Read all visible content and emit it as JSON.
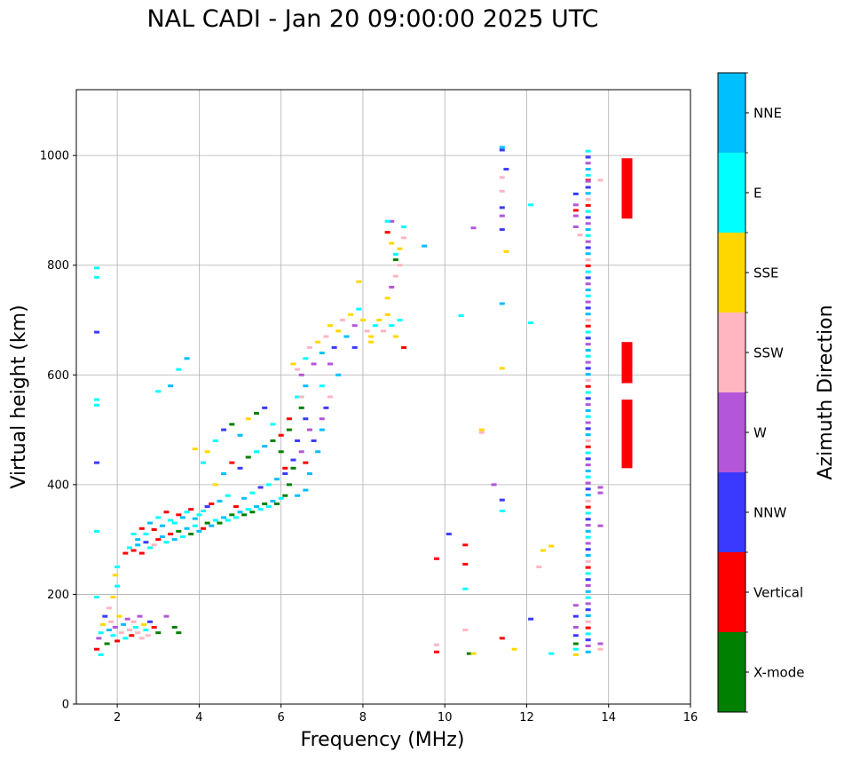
{
  "chart_data": {
    "type": "scatter",
    "title": "NAL CADI - Jan 20 09:00:00 2025 UTC",
    "xlabel": "Frequency (MHz)",
    "ylabel": "Virtual height (km)",
    "colorbar_label": "Azimuth Direction",
    "xlim": [
      1,
      16
    ],
    "ylim": [
      0,
      1120
    ],
    "xticks": [
      2,
      4,
      6,
      8,
      10,
      12,
      14,
      16
    ],
    "yticks": [
      0,
      200,
      400,
      600,
      800,
      1000
    ],
    "grid": true,
    "categories": [
      {
        "name": "X-mode",
        "color": "#008000"
      },
      {
        "name": "Vertical",
        "color": "#ff0000"
      },
      {
        "name": "NNW",
        "color": "#3a3aff"
      },
      {
        "name": "W",
        "color": "#b456d8"
      },
      {
        "name": "SSW",
        "color": "#ffb6c1"
      },
      {
        "name": "SSE",
        "color": "#ffd700"
      },
      {
        "name": "E",
        "color": "#00ffff"
      },
      {
        "name": "NNE",
        "color": "#00bfff"
      }
    ],
    "points": [
      [
        1.5,
        100,
        1
      ],
      [
        1.55,
        120,
        3
      ],
      [
        1.6,
        130,
        6
      ],
      [
        1.65,
        145,
        5
      ],
      [
        1.7,
        160,
        2
      ],
      [
        1.75,
        110,
        0
      ],
      [
        1.8,
        135,
        7
      ],
      [
        1.85,
        150,
        4
      ],
      [
        1.9,
        125,
        6
      ],
      [
        1.95,
        140,
        3
      ],
      [
        2.0,
        115,
        1
      ],
      [
        2.05,
        160,
        5
      ],
      [
        2.1,
        130,
        4
      ],
      [
        2.15,
        145,
        7
      ],
      [
        2.2,
        120,
        6
      ],
      [
        2.25,
        155,
        3
      ],
      [
        2.3,
        135,
        4
      ],
      [
        2.35,
        125,
        1
      ],
      [
        2.4,
        150,
        4
      ],
      [
        2.45,
        140,
        6
      ],
      [
        2.5,
        130,
        4
      ],
      [
        2.55,
        160,
        3
      ],
      [
        2.6,
        120,
        4
      ],
      [
        2.65,
        145,
        5
      ],
      [
        2.7,
        135,
        6
      ],
      [
        2.75,
        125,
        4
      ],
      [
        2.8,
        150,
        2
      ],
      [
        2.9,
        140,
        1
      ],
      [
        3.0,
        130,
        0
      ],
      [
        3.2,
        160,
        3
      ],
      [
        3.4,
        140,
        0
      ],
      [
        3.5,
        130,
        0
      ],
      [
        1.6,
        90,
        6
      ],
      [
        1.5,
        195,
        6
      ],
      [
        1.5,
        315,
        6
      ],
      [
        1.5,
        440,
        2
      ],
      [
        1.5,
        545,
        6
      ],
      [
        1.5,
        555,
        6
      ],
      [
        1.5,
        678,
        2
      ],
      [
        1.5,
        778,
        6
      ],
      [
        1.5,
        795,
        6
      ],
      [
        1.8,
        175,
        4
      ],
      [
        1.9,
        195,
        5
      ],
      [
        2.0,
        215,
        6
      ],
      [
        1.95,
        235,
        5
      ],
      [
        2.0,
        250,
        6
      ],
      [
        2.2,
        275,
        1
      ],
      [
        2.3,
        285,
        6
      ],
      [
        2.4,
        280,
        1
      ],
      [
        2.5,
        290,
        7
      ],
      [
        2.6,
        275,
        1
      ],
      [
        2.7,
        295,
        2
      ],
      [
        2.8,
        285,
        6
      ],
      [
        2.9,
        290,
        4
      ],
      [
        3.0,
        300,
        1
      ],
      [
        3.1,
        305,
        7
      ],
      [
        3.2,
        295,
        6
      ],
      [
        3.3,
        310,
        1
      ],
      [
        3.4,
        300,
        7
      ],
      [
        3.5,
        315,
        0
      ],
      [
        3.6,
        305,
        6
      ],
      [
        3.7,
        320,
        7
      ],
      [
        3.8,
        310,
        0
      ],
      [
        3.9,
        325,
        6
      ],
      [
        4.0,
        315,
        7
      ],
      [
        4.1,
        320,
        1
      ],
      [
        4.2,
        330,
        0
      ],
      [
        4.3,
        325,
        7
      ],
      [
        4.4,
        335,
        6
      ],
      [
        4.5,
        330,
        0
      ],
      [
        4.6,
        340,
        7
      ],
      [
        4.7,
        335,
        6
      ],
      [
        4.8,
        345,
        0
      ],
      [
        4.9,
        340,
        6
      ],
      [
        5.0,
        350,
        7
      ],
      [
        5.1,
        345,
        0
      ],
      [
        5.2,
        355,
        6
      ],
      [
        5.3,
        350,
        0
      ],
      [
        5.4,
        360,
        7
      ],
      [
        5.5,
        355,
        6
      ],
      [
        5.6,
        365,
        0
      ],
      [
        5.7,
        360,
        6
      ],
      [
        5.8,
        370,
        7
      ],
      [
        5.9,
        365,
        0
      ],
      [
        6.0,
        375,
        6
      ],
      [
        6.1,
        380,
        0
      ],
      [
        2.4,
        310,
        6
      ],
      [
        2.6,
        320,
        1
      ],
      [
        2.8,
        330,
        7
      ],
      [
        3.0,
        340,
        6
      ],
      [
        3.2,
        350,
        1
      ],
      [
        3.4,
        330,
        6
      ],
      [
        3.6,
        340,
        7
      ],
      [
        3.8,
        355,
        1
      ],
      [
        4.0,
        345,
        6
      ],
      [
        4.2,
        360,
        2
      ],
      [
        2.5,
        300,
        7
      ],
      [
        2.7,
        310,
        6
      ],
      [
        2.9,
        318,
        1
      ],
      [
        3.1,
        325,
        7
      ],
      [
        3.3,
        335,
        6
      ],
      [
        3.5,
        345,
        1
      ],
      [
        3.7,
        350,
        6
      ],
      [
        3.9,
        338,
        7
      ],
      [
        4.1,
        352,
        6
      ],
      [
        4.3,
        365,
        1
      ],
      [
        4.5,
        370,
        7
      ],
      [
        4.7,
        380,
        6
      ],
      [
        4.9,
        360,
        1
      ],
      [
        5.1,
        375,
        7
      ],
      [
        5.3,
        385,
        6
      ],
      [
        5.5,
        395,
        2
      ],
      [
        5.7,
        400,
        6
      ],
      [
        5.9,
        410,
        7
      ],
      [
        6.1,
        420,
        2
      ],
      [
        6.3,
        430,
        0
      ],
      [
        4.4,
        400,
        5
      ],
      [
        4.6,
        420,
        7
      ],
      [
        4.8,
        440,
        1
      ],
      [
        5.0,
        430,
        2
      ],
      [
        5.2,
        450,
        0
      ],
      [
        5.4,
        460,
        6
      ],
      [
        5.6,
        470,
        7
      ],
      [
        5.8,
        480,
        0
      ],
      [
        6.0,
        490,
        1
      ],
      [
        6.2,
        500,
        0
      ],
      [
        4.2,
        460,
        5
      ],
      [
        4.4,
        480,
        6
      ],
      [
        4.6,
        500,
        2
      ],
      [
        4.8,
        510,
        0
      ],
      [
        5.0,
        490,
        7
      ],
      [
        5.2,
        520,
        5
      ],
      [
        5.4,
        530,
        0
      ],
      [
        5.6,
        540,
        2
      ],
      [
        5.8,
        510,
        6
      ],
      [
        6.0,
        460,
        0
      ],
      [
        3.3,
        580,
        7
      ],
      [
        3.5,
        610,
        6
      ],
      [
        3.7,
        630,
        7
      ],
      [
        3.0,
        570,
        6
      ],
      [
        3.9,
        465,
        5
      ],
      [
        4.1,
        440,
        6
      ],
      [
        6.2,
        520,
        1
      ],
      [
        6.4,
        560,
        6
      ],
      [
        6.5,
        540,
        0
      ],
      [
        6.6,
        580,
        7
      ],
      [
        6.4,
        610,
        4
      ],
      [
        6.5,
        600,
        3
      ],
      [
        6.6,
        630,
        6
      ],
      [
        6.7,
        650,
        4
      ],
      [
        6.8,
        620,
        3
      ],
      [
        6.9,
        660,
        5
      ],
      [
        7.0,
        640,
        7
      ],
      [
        7.1,
        670,
        4
      ],
      [
        7.2,
        690,
        5
      ],
      [
        7.3,
        650,
        2
      ],
      [
        7.4,
        680,
        5
      ],
      [
        7.5,
        700,
        4
      ],
      [
        7.6,
        670,
        7
      ],
      [
        7.7,
        710,
        5
      ],
      [
        7.8,
        690,
        3
      ],
      [
        7.9,
        720,
        6
      ],
      [
        8.0,
        700,
        5
      ],
      [
        8.1,
        680,
        4
      ],
      [
        8.2,
        670,
        5
      ],
      [
        8.3,
        690,
        6
      ],
      [
        8.4,
        700,
        5
      ],
      [
        8.5,
        680,
        4
      ],
      [
        8.6,
        710,
        5
      ],
      [
        8.7,
        690,
        6
      ],
      [
        8.8,
        670,
        5
      ],
      [
        8.9,
        700,
        6
      ],
      [
        9.0,
        650,
        1
      ],
      [
        8.6,
        740,
        5
      ],
      [
        8.7,
        760,
        3
      ],
      [
        8.8,
        780,
        4
      ],
      [
        8.6,
        860,
        1
      ],
      [
        8.7,
        840,
        5
      ],
      [
        8.8,
        820,
        6
      ],
      [
        8.9,
        800,
        4
      ],
      [
        9.0,
        870,
        6
      ],
      [
        8.8,
        810,
        0
      ],
      [
        8.9,
        830,
        5
      ],
      [
        9.0,
        850,
        4
      ],
      [
        8.7,
        880,
        3
      ],
      [
        8.6,
        880,
        6
      ],
      [
        6.3,
        620,
        5
      ],
      [
        6.5,
        560,
        4
      ],
      [
        6.6,
        520,
        2
      ],
      [
        6.7,
        500,
        3
      ],
      [
        6.8,
        480,
        2
      ],
      [
        6.9,
        460,
        7
      ],
      [
        7.0,
        520,
        3
      ],
      [
        7.1,
        540,
        2
      ],
      [
        7.2,
        560,
        4
      ],
      [
        7.0,
        580,
        6
      ],
      [
        6.4,
        480,
        2
      ],
      [
        6.5,
        460,
        3
      ],
      [
        6.6,
        440,
        1
      ],
      [
        6.7,
        420,
        7
      ],
      [
        6.3,
        445,
        2
      ],
      [
        6.2,
        400,
        0
      ],
      [
        6.1,
        430,
        1
      ],
      [
        6.4,
        380,
        7
      ],
      [
        6.6,
        390,
        7
      ],
      [
        7.0,
        500,
        7
      ],
      [
        7.4,
        600,
        7
      ],
      [
        7.2,
        620,
        3
      ],
      [
        7.8,
        650,
        2
      ],
      [
        8.2,
        660,
        5
      ],
      [
        9.5,
        835,
        7
      ],
      [
        7.9,
        770,
        5
      ],
      [
        9.8,
        265,
        1
      ],
      [
        9.8,
        95,
        1
      ],
      [
        9.8,
        108,
        4
      ],
      [
        10.1,
        310,
        2
      ],
      [
        10.4,
        708,
        6
      ],
      [
        10.5,
        290,
        1
      ],
      [
        10.5,
        255,
        1
      ],
      [
        10.5,
        210,
        6
      ],
      [
        10.5,
        135,
        4
      ],
      [
        10.6,
        92,
        0
      ],
      [
        10.7,
        92,
        5
      ],
      [
        10.7,
        868,
        3
      ],
      [
        10.9,
        500,
        5
      ],
      [
        10.9,
        495,
        4
      ],
      [
        11.2,
        400,
        3
      ],
      [
        11.4,
        372,
        2
      ],
      [
        11.4,
        352,
        6
      ],
      [
        11.4,
        612,
        5
      ],
      [
        11.4,
        730,
        7
      ],
      [
        11.5,
        825,
        5
      ],
      [
        11.4,
        865,
        2
      ],
      [
        11.4,
        890,
        3
      ],
      [
        11.4,
        905,
        2
      ],
      [
        11.4,
        935,
        4
      ],
      [
        11.4,
        960,
        4
      ],
      [
        11.5,
        975,
        2
      ],
      [
        11.4,
        1010,
        2
      ],
      [
        11.4,
        1015,
        7
      ],
      [
        11.4,
        120,
        1
      ],
      [
        11.7,
        100,
        5
      ],
      [
        12.1,
        155,
        2
      ],
      [
        12.1,
        695,
        6
      ],
      [
        12.1,
        910,
        6
      ],
      [
        12.3,
        250,
        4
      ],
      [
        12.4,
        280,
        5
      ],
      [
        12.6,
        92,
        6
      ],
      [
        12.6,
        288,
        5
      ],
      [
        13.2,
        90,
        5
      ],
      [
        13.2,
        100,
        6
      ],
      [
        13.2,
        110,
        0
      ],
      [
        13.2,
        125,
        2
      ],
      [
        13.2,
        140,
        3
      ],
      [
        13.2,
        160,
        2
      ],
      [
        13.2,
        180,
        3
      ],
      [
        13.2,
        870,
        3
      ],
      [
        13.2,
        890,
        3
      ],
      [
        13.2,
        900,
        1
      ],
      [
        13.2,
        910,
        3
      ],
      [
        13.2,
        930,
        2
      ],
      [
        13.3,
        855,
        4
      ],
      [
        13.5,
        955,
        1
      ],
      [
        13.8,
        955,
        4
      ],
      [
        13.8,
        385,
        3
      ],
      [
        13.8,
        395,
        3
      ],
      [
        13.8,
        110,
        3
      ],
      [
        13.8,
        100,
        4
      ],
      [
        13.8,
        325,
        3
      ]
    ],
    "column_14": {
      "x": 13.5,
      "from": 95,
      "to": 1010,
      "step": 11
    },
    "bars": [
      {
        "x": 14.45,
        "y0": 885,
        "y1": 995,
        "category": 1
      },
      {
        "x": 14.45,
        "y0": 585,
        "y1": 660,
        "category": 1
      },
      {
        "x": 14.45,
        "y0": 430,
        "y1": 555,
        "category": 1
      }
    ]
  }
}
